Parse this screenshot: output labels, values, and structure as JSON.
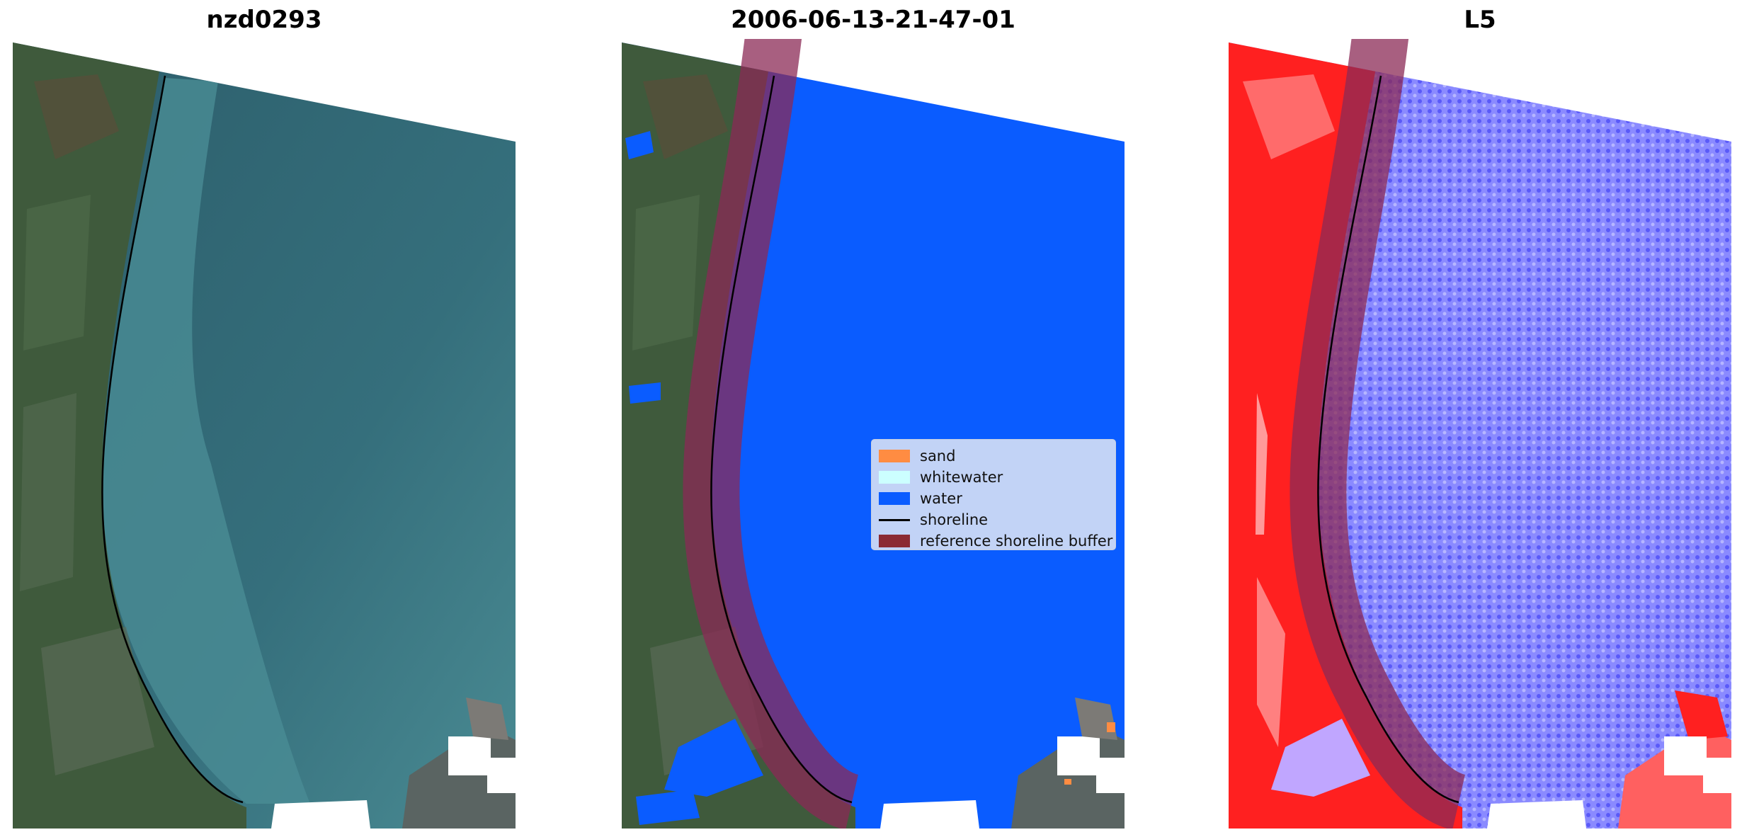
{
  "panels": [
    {
      "title": "nzd0293"
    },
    {
      "title": "2006-06-13-21-47-01"
    },
    {
      "title": "L5"
    }
  ],
  "legend": {
    "items": [
      {
        "label": "sand",
        "color": "#ff8c42",
        "kind": "patch"
      },
      {
        "label": "whitewater",
        "color": "#ccffff",
        "kind": "patch"
      },
      {
        "label": "water",
        "color": "#0a5cff",
        "kind": "patch"
      },
      {
        "label": "shoreline",
        "color": "#000000",
        "kind": "line"
      },
      {
        "label": "reference shoreline buffer",
        "color": "#8b2a33",
        "kind": "patch"
      }
    ]
  },
  "colors": {
    "land": "#3f5a3c",
    "sea_rgb": "#2f6b78",
    "shallow_rgb": "#4d8d96",
    "classified_water": "#0a5cff",
    "index_land": "#ff1a1a",
    "index_water": "#6a6aff",
    "buffer": "#8b2a56",
    "shoreline": "#000000"
  }
}
